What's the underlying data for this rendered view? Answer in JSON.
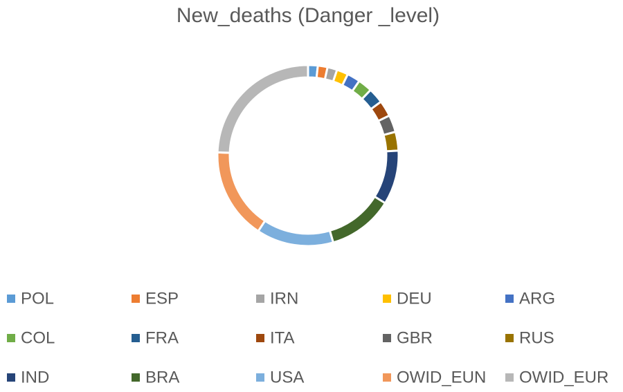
{
  "chart_data": {
    "type": "donut",
    "title": "New_deaths (Danger _level)",
    "categories": [
      "POL",
      "ESP",
      "IRN",
      "DEU",
      "ARG",
      "COL",
      "FRA",
      "ITA",
      "GBR",
      "RUS",
      "IND",
      "BRA",
      "USA",
      "OWID_EUN",
      "OWID_EUR"
    ],
    "values": [
      1.7,
      1.7,
      1.7,
      2,
      2.3,
      2.5,
      2.7,
      2.8,
      3,
      3.3,
      9.5,
      11.5,
      13.5,
      16,
      24
    ],
    "colors": [
      "#5b9bd5",
      "#ed7d31",
      "#a5a5a5",
      "#ffc000",
      "#4472c4",
      "#70ad47",
      "#255e91",
      "#9e480e",
      "#636363",
      "#997300",
      "#264478",
      "#43682b",
      "#7cafdd",
      "#f1975a",
      "#b7b7b7"
    ],
    "legend": "bottom"
  }
}
